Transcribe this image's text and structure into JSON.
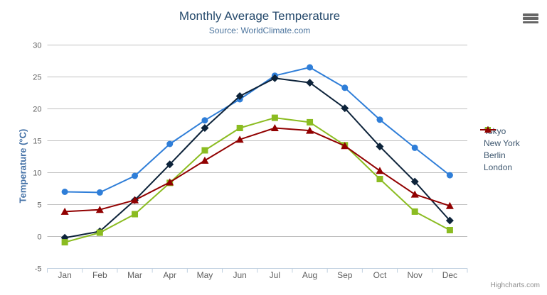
{
  "chart_data": {
    "type": "line",
    "title": "Monthly Average Temperature",
    "subtitle": "Source: WorldClimate.com",
    "xlabel": "",
    "ylabel": "Temperature (°C)",
    "ylim": [
      -5,
      30
    ],
    "ytick_step": 5,
    "grid": true,
    "legend_position": "right",
    "categories": [
      "Jan",
      "Feb",
      "Mar",
      "Apr",
      "May",
      "Jun",
      "Jul",
      "Aug",
      "Sep",
      "Oct",
      "Nov",
      "Dec"
    ],
    "series": [
      {
        "name": "Tokyo",
        "color": "#2f7ed8",
        "marker": "circle",
        "values": [
          7.0,
          6.9,
          9.5,
          14.5,
          18.2,
          21.5,
          25.2,
          26.5,
          23.3,
          18.3,
          13.9,
          9.6
        ]
      },
      {
        "name": "New York",
        "color": "#0d233a",
        "marker": "diamond",
        "values": [
          -0.2,
          0.8,
          5.7,
          11.3,
          17.0,
          22.0,
          24.8,
          24.1,
          20.1,
          14.1,
          8.6,
          2.5
        ]
      },
      {
        "name": "Berlin",
        "color": "#8bbc21",
        "marker": "square",
        "values": [
          -0.9,
          0.6,
          3.5,
          8.4,
          13.5,
          17.0,
          18.6,
          17.9,
          14.3,
          9.0,
          3.9,
          1.0
        ]
      },
      {
        "name": "London",
        "color": "#910000",
        "marker": "triangle",
        "values": [
          3.9,
          4.2,
          5.7,
          8.5,
          11.9,
          15.2,
          17.0,
          16.6,
          14.2,
          10.3,
          6.6,
          4.8
        ]
      }
    ]
  },
  "credits": {
    "label": "Highcharts.com"
  },
  "icons": {
    "export_menu": "hamburger-icon"
  },
  "colors": {
    "background": "#ffffff",
    "title": "#274b6d",
    "subtitle": "#4d759e",
    "axis_title": "#4572a7",
    "axis_labels": "#606060",
    "gridline": "#c0c0c0",
    "axis_line": "#c0d0e0",
    "legend_text": "#3e576f",
    "credits_text": "#909090"
  }
}
